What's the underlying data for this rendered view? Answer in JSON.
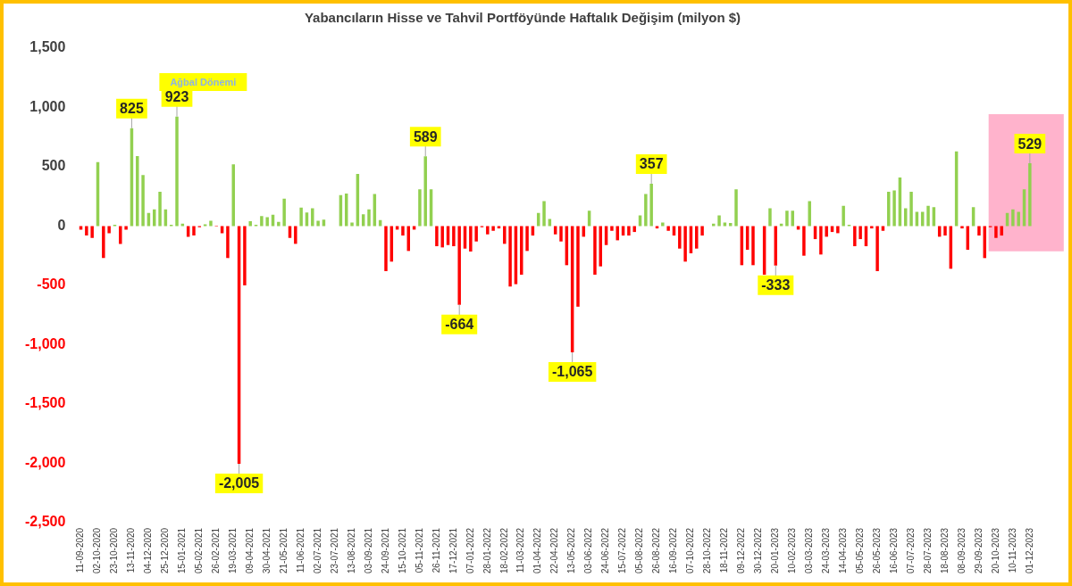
{
  "chart_data": {
    "type": "bar",
    "title": "Yabancıların Hisse ve Tahvil Portföyünde Haftalık Değişim (milyon $)",
    "categories": [
      "11-09-2020",
      null,
      null,
      "02-10-2020",
      null,
      null,
      "23-10-2020",
      null,
      null,
      "13-11-2020",
      null,
      null,
      "04-12-2020",
      null,
      null,
      "25-12-2020",
      null,
      null,
      "15-01-2021",
      null,
      null,
      "05-02-2021",
      null,
      null,
      "26-02-2021",
      null,
      null,
      "19-03-2021",
      null,
      null,
      "09-04-2021",
      null,
      null,
      "30-04-2021",
      null,
      null,
      "21-05-2021",
      null,
      null,
      "11-06-2021",
      null,
      null,
      "02-07-2021",
      null,
      null,
      "23-07-2021",
      null,
      null,
      "13-08-2021",
      null,
      null,
      "03-09-2021",
      null,
      null,
      "24-09-2021",
      null,
      null,
      "15-10-2021",
      null,
      null,
      "05-11-2021",
      null,
      null,
      "26-11-2021",
      null,
      null,
      "17-12-2021",
      null,
      null,
      "07-01-2022",
      null,
      null,
      "28-01-2022",
      null,
      null,
      "18-02-2022",
      null,
      null,
      "11-03-2022",
      null,
      null,
      "01-04-2022",
      null,
      null,
      "22-04-2022",
      null,
      null,
      "13-05-2022",
      null,
      null,
      "03-06-2022",
      null,
      null,
      "24-06-2022",
      null,
      null,
      "15-07-2022",
      null,
      null,
      "05-08-2022",
      null,
      null,
      "26-08-2022",
      null,
      null,
      "16-09-2022",
      null,
      null,
      "07-10-2022",
      null,
      null,
      "28-10-2022",
      null,
      null,
      "18-11-2022",
      null,
      null,
      "09-12-2022",
      null,
      null,
      "30-12-2022",
      null,
      null,
      "20-01-2023",
      null,
      null,
      "10-02-2023",
      null,
      null,
      "03-03-2023",
      null,
      null,
      "24-03-2023",
      null,
      null,
      "14-04-2023",
      null,
      null,
      "05-05-2023",
      null,
      null,
      "26-05-2023",
      null,
      null,
      "16-06-2023",
      null,
      null,
      "07-07-2023",
      null,
      null,
      "28-07-2023",
      null,
      null,
      "18-08-2023",
      null,
      null,
      "08-09-2023",
      null,
      null,
      "29-09-2023",
      null,
      null,
      "20-10-2023",
      null,
      null,
      "10-11-2023",
      null,
      null,
      "01-12-2023"
    ],
    "values": [
      -30,
      -80,
      -100,
      540,
      -270,
      -60,
      10,
      -150,
      -30,
      825,
      590,
      430,
      110,
      140,
      290,
      140,
      10,
      923,
      20,
      -90,
      -80,
      -10,
      15,
      45,
      -5,
      -60,
      -270,
      520,
      -2005,
      -500,
      40,
      10,
      85,
      75,
      95,
      35,
      230,
      -100,
      -150,
      155,
      115,
      150,
      45,
      55,
      0,
      0,
      260,
      275,
      30,
      440,
      100,
      140,
      270,
      50,
      -380,
      -300,
      -30,
      -80,
      -210,
      -30,
      310,
      589,
      310,
      -170,
      -180,
      -160,
      -170,
      -664,
      -190,
      -215,
      -130,
      -10,
      -70,
      -40,
      -20,
      -150,
      -510,
      -490,
      -410,
      -210,
      -80,
      110,
      210,
      60,
      -70,
      -130,
      -330,
      -1065,
      -680,
      -90,
      130,
      -410,
      -340,
      -160,
      -40,
      -120,
      -80,
      -80,
      -50,
      90,
      270,
      357,
      -20,
      30,
      -40,
      -80,
      -190,
      -300,
      -230,
      -190,
      -80,
      0,
      20,
      90,
      30,
      25,
      310,
      -330,
      -200,
      -330,
      0,
      -410,
      150,
      -333,
      20,
      130,
      130,
      -30,
      -250,
      210,
      -110,
      -240,
      -90,
      -50,
      -60,
      170,
      10,
      -170,
      -110,
      -170,
      -20,
      -380,
      -40,
      290,
      300,
      410,
      150,
      290,
      120,
      120,
      170,
      160,
      -90,
      -80,
      -360,
      630,
      -20,
      -200,
      160,
      -80,
      -270,
      -10,
      -100,
      -80,
      110,
      140,
      120,
      310,
      529
    ],
    "colors": [
      "#ff0000",
      "#ff0000",
      "#ff0000",
      "#92d050",
      "#ff0000",
      "#ff0000",
      "#92d050",
      "#ff0000",
      "#ff0000",
      "#92d050",
      "#92d050",
      "#92d050",
      "#92d050",
      "#92d050",
      "#92d050",
      "#92d050",
      "#92d050",
      "#92d050",
      "#92d050",
      "#ff0000",
      "#ff0000",
      "#ff0000",
      "#92d050",
      "#92d050",
      "#ff0000",
      "#ff0000",
      "#ff0000",
      "#92d050",
      "#ff0000",
      "#ff0000",
      "#92d050",
      "#92d050",
      "#92d050",
      "#92d050",
      "#92d050",
      "#92d050",
      "#92d050",
      "#ff0000",
      "#ff0000",
      "#92d050",
      "#92d050",
      "#92d050",
      "#92d050",
      "#92d050",
      "#92d050",
      "#92d050",
      "#92d050",
      "#92d050",
      "#92d050",
      "#92d050",
      "#92d050",
      "#92d050",
      "#92d050",
      "#92d050",
      "#ff0000",
      "#ff0000",
      "#ff0000",
      "#ff0000",
      "#ff0000",
      "#ff0000",
      "#92d050",
      "#92d050",
      "#92d050",
      "#ff0000",
      "#ff0000",
      "#ff0000",
      "#ff0000",
      "#ff0000",
      "#ff0000",
      "#ff0000",
      "#ff0000",
      "#ff0000",
      "#ff0000",
      "#ff0000",
      "#ff0000",
      "#ff0000",
      "#ff0000",
      "#ff0000",
      "#ff0000",
      "#ff0000",
      "#ff0000",
      "#92d050",
      "#92d050",
      "#92d050",
      "#ff0000",
      "#ff0000",
      "#ff0000",
      "#ff0000",
      "#ff0000",
      "#ff0000",
      "#92d050",
      "#ff0000",
      "#ff0000",
      "#ff0000",
      "#ff0000",
      "#ff0000",
      "#ff0000",
      "#ff0000",
      "#ff0000",
      "#92d050",
      "#92d050",
      "#92d050",
      "#ff0000",
      "#92d050",
      "#ff0000",
      "#ff0000",
      "#ff0000",
      "#ff0000",
      "#ff0000",
      "#ff0000",
      "#ff0000",
      "#92d050",
      "#92d050",
      "#92d050",
      "#92d050",
      "#92d050",
      "#92d050",
      "#ff0000",
      "#ff0000",
      "#ff0000",
      "#92d050",
      "#ff0000",
      "#92d050",
      "#ff0000",
      "#92d050",
      "#92d050",
      "#92d050",
      "#ff0000",
      "#ff0000",
      "#92d050",
      "#ff0000",
      "#ff0000",
      "#ff0000",
      "#ff0000",
      "#ff0000",
      "#92d050",
      "#92d050",
      "#ff0000",
      "#ff0000",
      "#ff0000",
      "#ff0000",
      "#ff0000",
      "#ff0000",
      "#92d050",
      "#92d050",
      "#92d050",
      "#92d050",
      "#92d050",
      "#92d050",
      "#92d050",
      "#92d050",
      "#92d050",
      "#ff0000",
      "#ff0000",
      "#ff0000",
      "#92d050",
      "#ff0000",
      "#ff0000",
      "#92d050",
      "#ff0000",
      "#ff0000",
      "#ff0000",
      "#ff0000",
      "#ff0000",
      "#92d050",
      "#92d050",
      "#92d050",
      "#92d050",
      "#92d050"
    ],
    "value_labels": [
      null,
      null,
      null,
      null,
      null,
      null,
      null,
      null,
      null,
      "825",
      null,
      null,
      null,
      null,
      null,
      null,
      null,
      "923",
      null,
      null,
      null,
      null,
      null,
      null,
      null,
      null,
      null,
      null,
      "-2,005",
      null,
      null,
      null,
      null,
      null,
      null,
      null,
      null,
      null,
      null,
      null,
      null,
      null,
      null,
      null,
      null,
      null,
      null,
      null,
      null,
      null,
      null,
      null,
      null,
      null,
      null,
      null,
      null,
      null,
      null,
      null,
      null,
      "589",
      null,
      null,
      null,
      null,
      null,
      "-664",
      null,
      null,
      null,
      null,
      null,
      null,
      null,
      null,
      null,
      null,
      null,
      null,
      null,
      null,
      null,
      null,
      null,
      null,
      null,
      "-1,065",
      null,
      null,
      null,
      null,
      null,
      null,
      null,
      null,
      null,
      null,
      null,
      null,
      null,
      "357",
      null,
      null,
      null,
      null,
      null,
      null,
      null,
      null,
      null,
      null,
      null,
      null,
      null,
      null,
      null,
      null,
      null,
      null,
      null,
      null,
      null,
      "-333",
      null,
      null,
      null,
      null,
      null,
      null,
      null,
      null,
      null,
      null,
      null,
      null,
      null,
      null,
      null,
      null,
      null,
      null,
      null,
      null,
      null,
      null,
      null,
      null,
      null,
      null,
      null,
      null,
      null,
      null,
      null,
      null,
      null,
      null,
      null,
      null,
      null,
      null,
      null,
      null,
      null,
      null,
      null,
      null,
      "529"
    ],
    "ylim": [
      -2500,
      1500
    ],
    "yticks": [
      {
        "value": -2500,
        "label": "-2,500"
      },
      {
        "value": -2000,
        "label": "-2,000"
      },
      {
        "value": -1500,
        "label": "-1,500"
      },
      {
        "value": -1000,
        "label": "-1,000"
      },
      -500,
      0,
      500,
      {
        "value": 1000,
        "label": "1,000"
      },
      {
        "value": 1500,
        "label": "1,500"
      }
    ],
    "annotations": [
      "Ağbal Dönemi"
    ],
    "bands": [
      {
        "axis": "x",
        "from": "20-10-2023",
        "to": "01-12-2023",
        "color": "#ffb3cc"
      }
    ]
  }
}
